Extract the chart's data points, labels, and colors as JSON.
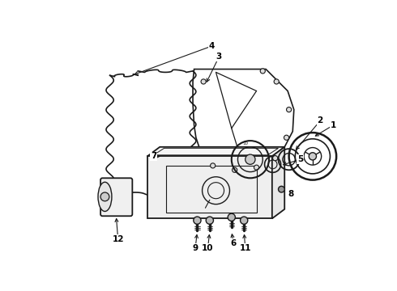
{
  "bg_color": "#ffffff",
  "lc": "#1a1a1a",
  "figsize": [
    4.9,
    3.6
  ],
  "dpi": 100
}
